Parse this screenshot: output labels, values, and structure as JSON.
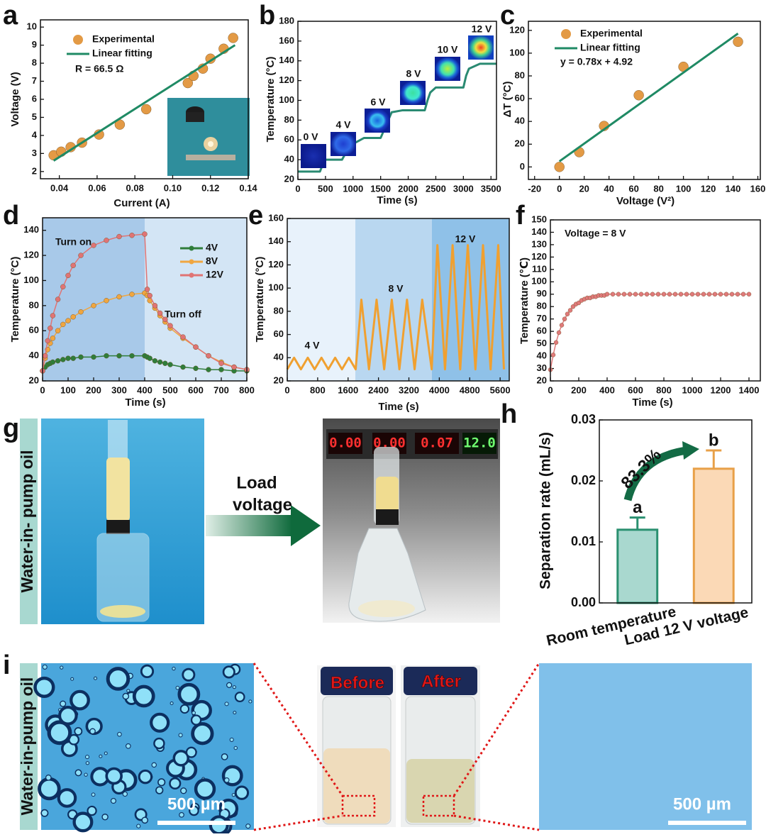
{
  "chart_data": [
    {
      "panel": "a",
      "type": "scatter",
      "xlabel": "Current (A)",
      "ylabel": "Voltage (V)",
      "xlim": [
        0.03,
        0.14
      ],
      "ylim": [
        1.6,
        10.4
      ],
      "xticks": [
        0.04,
        0.06,
        0.08,
        {
          "value": 0.1,
          "label": "0.10"
        },
        0.12,
        0.14
      ],
      "yticks": [
        2,
        3,
        4,
        5,
        6,
        7,
        8,
        9,
        10
      ],
      "series": [
        {
          "name": "Experimental",
          "mode": "markers",
          "color": "#e39a45",
          "x": [
            0.037,
            0.041,
            0.046,
            0.052,
            0.061,
            0.072,
            0.086,
            0.108,
            0.111,
            0.116,
            0.12,
            0.127,
            0.132
          ],
          "values": [
            2.9,
            3.1,
            3.35,
            3.6,
            4.05,
            4.6,
            5.45,
            6.9,
            7.3,
            7.7,
            8.25,
            8.8,
            9.4
          ]
        },
        {
          "name": "Linear fitting",
          "mode": "line",
          "color": "#1f8a64",
          "x": [
            0.037,
            0.133
          ],
          "values": [
            2.6,
            9.0
          ]
        }
      ],
      "annotations": [
        "R = 66.5 Ω"
      ]
    },
    {
      "panel": "b",
      "type": "line",
      "xlabel": "Time (s)",
      "ylabel": "Temperature (°C)",
      "xlim": [
        0,
        3600
      ],
      "ylim": [
        20,
        180
      ],
      "xticks": [
        0,
        500,
        1000,
        1500,
        2000,
        2500,
        3000,
        3500
      ],
      "yticks": [
        20,
        40,
        60,
        80,
        100,
        120,
        140,
        160,
        180
      ],
      "series": [
        {
          "mode": "line",
          "color": "#2a8a72",
          "x": [
            0,
            400,
            450,
            500,
            800,
            900,
            1000,
            1200,
            1500,
            1600,
            1700,
            1900,
            2300,
            2350,
            2400,
            2500,
            3000,
            3050,
            3100,
            3300,
            3600
          ],
          "values": [
            28,
            28,
            35,
            40,
            40,
            50,
            56,
            62,
            62,
            75,
            88,
            90,
            90,
            100,
            108,
            113,
            113,
            125,
            132,
            137,
            137
          ]
        }
      ],
      "annotations": [
        "0 V",
        "4 V",
        "6 V",
        "8 V",
        "10 V",
        "12 V"
      ]
    },
    {
      "panel": "c",
      "type": "scatter",
      "xlabel": "Voltage (V²)",
      "ylabel": "ΔT (°C)",
      "xlim": [
        -25,
        162
      ],
      "ylim": [
        -11,
        128
      ],
      "xticks": [
        -20,
        0,
        20,
        40,
        60,
        80,
        100,
        120,
        140,
        160
      ],
      "yticks": [
        0,
        20,
        40,
        60,
        80,
        100,
        120
      ],
      "series": [
        {
          "name": "Experimental",
          "mode": "markers",
          "color": "#e39a45",
          "x": [
            0,
            16,
            36,
            64,
            100,
            144
          ],
          "values": [
            0,
            13,
            36,
            63,
            88,
            110
          ]
        },
        {
          "name": "Linear fitting",
          "mode": "line",
          "color": "#1f8a64",
          "x": [
            0,
            144
          ],
          "values": [
            4.92,
            117.24
          ]
        }
      ],
      "annotations": [
        "y = 0.78x + 4.92"
      ]
    },
    {
      "panel": "d",
      "type": "line",
      "xlabel": "Time (s)",
      "ylabel": "Temperature (°C)",
      "xlim": [
        0,
        800
      ],
      "ylim": [
        20,
        150
      ],
      "xticks": [
        0,
        100,
        200,
        300,
        400,
        500,
        600,
        700,
        800
      ],
      "yticks": [
        20,
        40,
        60,
        80,
        100,
        120,
        140
      ],
      "x": [
        0,
        10,
        20,
        30,
        40,
        60,
        80,
        100,
        120,
        150,
        200,
        250,
        300,
        350,
        400,
        410,
        420,
        440,
        460,
        480,
        500,
        550,
        600,
        650,
        700,
        750,
        800
      ],
      "series": [
        {
          "name": "4V",
          "mode": "lines+markers",
          "color": "#2f7d3a",
          "values": [
            28,
            31,
            33,
            34,
            35,
            36,
            37,
            38,
            38,
            39,
            39,
            40,
            40,
            40,
            40,
            39,
            38,
            36,
            35,
            34,
            33,
            31,
            30,
            29,
            29,
            28,
            28
          ]
        },
        {
          "name": "8V",
          "mode": "lines+markers",
          "color": "#f0a640",
          "values": [
            28,
            38,
            45,
            50,
            54,
            60,
            65,
            68,
            71,
            75,
            80,
            84,
            87,
            89,
            90,
            88,
            84,
            78,
            72,
            67,
            62,
            54,
            47,
            40,
            35,
            31,
            29
          ]
        },
        {
          "name": "12V",
          "mode": "lines+markers",
          "color": "#e07474",
          "values": [
            28,
            40,
            52,
            62,
            72,
            85,
            95,
            104,
            112,
            120,
            128,
            132,
            135,
            136,
            137,
            93,
            88,
            80,
            74,
            69,
            64,
            55,
            47,
            40,
            34,
            31,
            29
          ]
        }
      ],
      "annotations": [
        "Turn on",
        "Turn off"
      ]
    },
    {
      "panel": "e",
      "type": "line",
      "xlabel": "Time (s)",
      "ylabel": "Temperature (°C)",
      "xlim": [
        0,
        5840
      ],
      "ylim": [
        20,
        160
      ],
      "xticks": [
        0,
        800,
        1600,
        2400,
        3200,
        4000,
        4800,
        5600
      ],
      "yticks": [
        20,
        40,
        60,
        80,
        100,
        120,
        140,
        160
      ],
      "series": [
        {
          "mode": "line",
          "color": "#f0a030",
          "x": [
            0,
            180,
            360,
            540,
            720,
            900,
            1080,
            1260,
            1440,
            1620,
            1800,
            1950,
            2150,
            2350,
            2550,
            2750,
            2950,
            3150,
            3350,
            3550,
            3800,
            3950,
            4150,
            4350,
            4550,
            4750,
            4950,
            5150,
            5350,
            5550,
            5700
          ],
          "values": [
            30,
            40,
            30,
            40,
            30,
            40,
            30,
            40,
            30,
            40,
            30,
            90,
            30,
            90,
            30,
            90,
            30,
            90,
            30,
            90,
            30,
            137,
            30,
            137,
            30,
            137,
            30,
            137,
            30,
            137,
            30
          ]
        }
      ],
      "annotations": [
        "4 V",
        "8 V",
        "12 V"
      ]
    },
    {
      "panel": "f",
      "type": "line",
      "xlabel": "Time (s)",
      "ylabel": "Temperature (℃)",
      "xlim": [
        0,
        1480
      ],
      "ylim": [
        20,
        150
      ],
      "xticks": [
        0,
        200,
        400,
        600,
        800,
        1000,
        1200,
        1400
      ],
      "yticks": [
        20,
        30,
        40,
        50,
        60,
        70,
        80,
        90,
        100,
        110,
        120,
        130,
        140,
        150
      ],
      "series": [
        {
          "mode": "lines+markers",
          "color": "#e07a7a",
          "x": [
            0,
            20,
            40,
            60,
            80,
            100,
            120,
            140,
            160,
            180,
            200,
            220,
            240,
            260,
            280,
            300,
            320,
            340,
            360,
            380,
            400,
            440,
            480,
            520,
            560,
            600,
            640,
            680,
            720,
            760,
            800,
            840,
            880,
            920,
            960,
            1000,
            1040,
            1080,
            1120,
            1160,
            1200,
            1240,
            1280,
            1320,
            1360,
            1400
          ],
          "values": [
            29,
            41,
            51,
            59,
            65,
            70,
            74,
            77,
            80,
            82,
            83,
            85,
            86,
            87,
            87,
            88,
            88,
            89,
            89,
            89,
            90,
            90,
            90,
            90,
            90,
            90,
            90,
            90,
            90,
            90,
            90,
            90,
            90,
            90,
            90,
            90,
            90,
            90,
            90,
            90,
            90,
            90,
            90,
            90,
            90,
            90
          ]
        }
      ],
      "annotations": [
        "Voltage = 8 V"
      ]
    },
    {
      "panel": "h",
      "type": "bar",
      "ylabel": "Separation rate (mL/s)",
      "categories": [
        "Room temperature",
        "Load 12 V voltage"
      ],
      "values": [
        0.012,
        0.022
      ],
      "errors": [
        0.002,
        0.003
      ],
      "colors": [
        "#a9d8cf",
        "#fbd9b6"
      ],
      "edge_colors": [
        "#2a9070",
        "#e8a048"
      ],
      "ylim": [
        0,
        0.03
      ],
      "yticks": [
        {
          "value": 0,
          "label": "0.00"
        },
        0.01,
        0.02,
        0.03
      ],
      "letters": [
        "a",
        "b"
      ],
      "annotations": [
        "83.3%"
      ]
    }
  ],
  "photos": {
    "g": {
      "panel": "g",
      "side_label": "Water-in- pump oil",
      "arrow_text": [
        "Load",
        "voltage"
      ],
      "displays": [
        "0.00",
        "0.00",
        "0.07",
        "12.0"
      ]
    },
    "i": {
      "panel": "i",
      "side_label": "Water-in-pump oil",
      "before": "Before",
      "after": "After",
      "scale_bars": [
        "500 µm",
        "500 µm"
      ]
    }
  }
}
